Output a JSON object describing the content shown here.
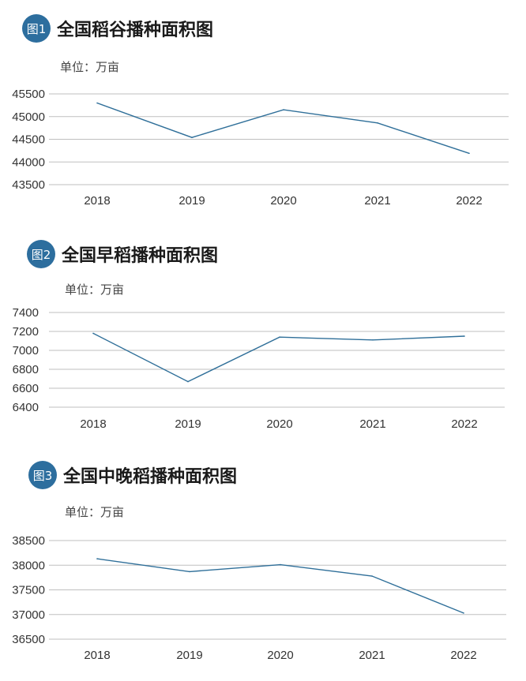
{
  "colors": {
    "badge": "#2d6e9e",
    "line": "#2f6f99",
    "grid": "#bfbfbf"
  },
  "chart_data": [
    {
      "type": "line",
      "badge": "图1",
      "title": "全国稻谷播种面积图",
      "unit": "单位：万亩",
      "categories": [
        "2018",
        "2019",
        "2020",
        "2021",
        "2022"
      ],
      "series": [
        {
          "values": [
            45300,
            44540,
            45150,
            44860,
            44190
          ]
        }
      ],
      "yticks": [
        "45500",
        "45000",
        "44500",
        "44000",
        "43500"
      ],
      "ylim": [
        43500,
        45500
      ],
      "grid": true
    },
    {
      "type": "line",
      "badge": "图2",
      "title": "全国早稻播种面积图",
      "unit": "单位：万亩",
      "categories": [
        "2018",
        "2019",
        "2020",
        "2021",
        "2022"
      ],
      "series": [
        {
          "values": [
            7180,
            6670,
            7140,
            7110,
            7150
          ]
        }
      ],
      "yticks": [
        "7400",
        "7200",
        "7000",
        "6800",
        "6600",
        "6400"
      ],
      "ylim": [
        6400,
        7400
      ],
      "grid": true
    },
    {
      "type": "line",
      "badge": "图3",
      "title": "全国中晚稻播种面积图",
      "unit": "单位：万亩",
      "categories": [
        "2018",
        "2019",
        "2020",
        "2021",
        "2022"
      ],
      "series": [
        {
          "values": [
            38130,
            37870,
            38010,
            37780,
            37030
          ]
        }
      ],
      "yticks": [
        "38500",
        "38000",
        "37500",
        "37000",
        "36500"
      ],
      "ylim": [
        36500,
        38500
      ],
      "grid": true
    }
  ]
}
